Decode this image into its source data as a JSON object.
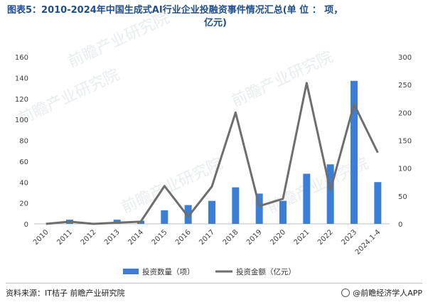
{
  "title_line1": "图表5：2010-2024年中国生成式AI行业企业投融资事件情况汇总(单 位 ： 项，",
  "title_line2": "亿元)",
  "chart_data": {
    "type": "bar+line",
    "categories": [
      "2010",
      "2011",
      "2012",
      "2013",
      "2014",
      "2015",
      "2016",
      "2017",
      "2018",
      "2019",
      "2020",
      "2021",
      "2022",
      "2023",
      "2024.1-4"
    ],
    "series": [
      {
        "name": "投资数量（项）",
        "type": "bar",
        "axis": "left",
        "color": "#3a7fd5",
        "values": [
          0,
          4,
          1,
          4,
          3,
          13,
          18,
          22,
          35,
          29,
          22,
          48,
          57,
          137,
          40
        ]
      },
      {
        "name": "投资金额（亿元）",
        "type": "line",
        "axis": "right",
        "color": "#6e6e6e",
        "values": [
          0,
          4,
          0,
          2,
          4,
          68,
          13,
          67,
          200,
          32,
          45,
          253,
          60,
          215,
          128
        ]
      }
    ],
    "y_left": {
      "min": 0,
      "max": 160,
      "ticks": [
        "0",
        "20",
        "40",
        "60",
        "80",
        "100",
        "120",
        "140",
        "160"
      ]
    },
    "y_right": {
      "min": 0,
      "max": 300,
      "ticks": [
        "0",
        "50",
        "100",
        "150",
        "200",
        "250",
        "300"
      ]
    },
    "legend_position": "bottom",
    "grid": false
  },
  "watermark": "前瞻产业研究院",
  "footer": {
    "source": "资料来源：IT桔子 前瞻产业研究院",
    "brand": "@前瞻经济学人APP"
  }
}
